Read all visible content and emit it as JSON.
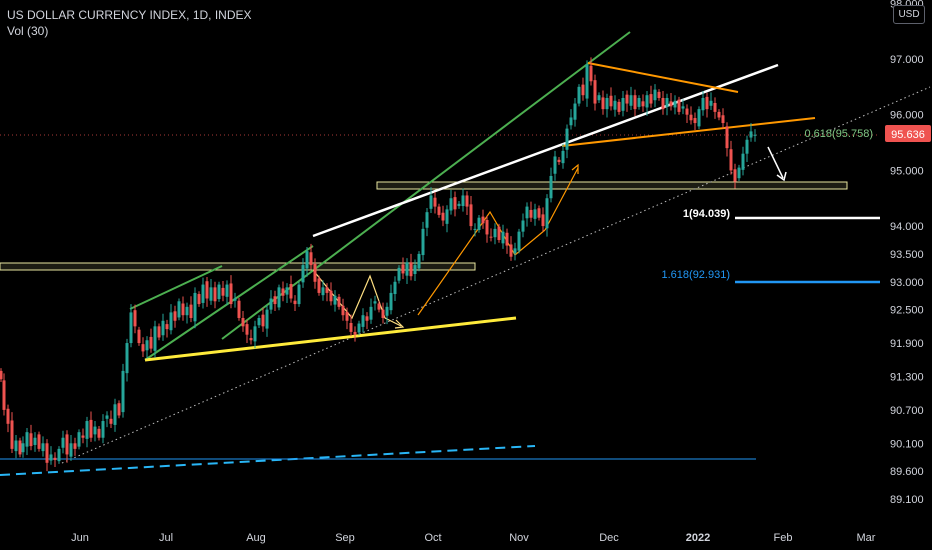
{
  "header": {
    "title": "US DOLLAR CURRENCY INDEX, 1D, INDEX",
    "indicator": "Vol (30)",
    "currency": "USD"
  },
  "colors": {
    "background": "#000000",
    "text": "#d1d4dc",
    "up": "#26a69a",
    "down": "#ef5350",
    "price_badge": "#ef5350",
    "green_line": "#4caf50",
    "white_line": "#ffffff",
    "orange_line": "#ff9800",
    "yellow_line": "#ffeb3b",
    "fib_green_text": "#81c784",
    "fib_blue": "#2196f3",
    "blue_dash": "#29b6f6",
    "zone_border": "#e8e6a0"
  },
  "chart_data": {
    "type": "candlestick",
    "symbol": "US DOLLAR CURRENCY INDEX",
    "timeframe": "1D",
    "y_tick_labels": [
      "98.000",
      "97.000",
      "96.000",
      "95.000",
      "94.000",
      "93.500",
      "93.000",
      "92.500",
      "91.900",
      "91.300",
      "90.700",
      "90.100",
      "89.600",
      "89.100"
    ],
    "x_tick_labels": [
      "Jun",
      "Jul",
      "Aug",
      "Sep",
      "Oct",
      "Nov",
      "Dec",
      "2022",
      "Feb",
      "Mar"
    ],
    "current_price": "95.636",
    "annotations": {
      "fib_0618": "0.618(95.758)",
      "fib_1": "1(94.039)",
      "fib_1618": "1.618(92.931)"
    },
    "ohlc_path": [
      [
        1,
        91.25
      ],
      [
        4,
        90.7
      ],
      [
        8,
        90.45
      ],
      [
        12,
        90.0
      ],
      [
        16,
        90.15
      ],
      [
        20,
        89.9
      ],
      [
        23,
        90.1
      ],
      [
        27,
        90.3
      ],
      [
        31,
        90.05
      ],
      [
        35,
        90.2
      ],
      [
        39,
        90.0
      ],
      [
        43,
        90.1
      ],
      [
        47,
        89.75
      ],
      [
        51,
        89.9
      ],
      [
        55,
        89.8
      ],
      [
        59,
        90.0
      ],
      [
        63,
        90.2
      ],
      [
        67,
        89.9
      ],
      [
        71,
        90.1
      ],
      [
        75,
        90.0
      ],
      [
        79,
        90.3
      ],
      [
        83,
        90.2
      ],
      [
        87,
        90.5
      ],
      [
        91,
        90.2
      ],
      [
        95,
        90.4
      ],
      [
        99,
        90.2
      ],
      [
        103,
        90.5
      ],
      [
        107,
        90.6
      ],
      [
        111,
        90.45
      ],
      [
        115,
        90.8
      ],
      [
        119,
        90.6
      ],
      [
        123,
        91.4
      ],
      [
        127,
        91.9
      ],
      [
        131,
        92.45
      ],
      [
        135,
        92.2
      ],
      [
        139,
        91.9
      ],
      [
        143,
        91.75
      ],
      [
        147,
        91.95
      ],
      [
        151,
        91.8
      ],
      [
        155,
        92.2
      ],
      [
        159,
        92.0
      ],
      [
        163,
        92.3
      ],
      [
        167,
        92.15
      ],
      [
        171,
        92.45
      ],
      [
        175,
        92.3
      ],
      [
        179,
        92.65
      ],
      [
        183,
        92.4
      ],
      [
        187,
        92.55
      ],
      [
        191,
        92.35
      ],
      [
        195,
        92.8
      ],
      [
        199,
        92.6
      ],
      [
        203,
        92.95
      ],
      [
        207,
        92.7
      ],
      [
        211,
        92.9
      ],
      [
        215,
        92.65
      ],
      [
        219,
        92.95
      ],
      [
        223,
        92.75
      ],
      [
        227,
        92.95
      ],
      [
        231,
        92.6
      ],
      [
        235,
        92.7
      ],
      [
        239,
        92.35
      ],
      [
        243,
        92.2
      ],
      [
        247,
        92.05
      ],
      [
        251,
        91.95
      ],
      [
        255,
        92.2
      ],
      [
        259,
        92.35
      ],
      [
        263,
        92.2
      ],
      [
        267,
        92.5
      ],
      [
        271,
        92.7
      ],
      [
        275,
        92.6
      ],
      [
        279,
        92.9
      ],
      [
        283,
        92.75
      ],
      [
        287,
        92.9
      ],
      [
        291,
        92.7
      ],
      [
        295,
        92.6
      ],
      [
        299,
        92.95
      ],
      [
        303,
        93.3
      ],
      [
        307,
        93.55
      ],
      [
        311,
        93.3
      ],
      [
        315,
        93.0
      ],
      [
        319,
        92.8
      ],
      [
        323,
        92.9
      ],
      [
        327,
        92.8
      ],
      [
        331,
        92.65
      ],
      [
        335,
        92.75
      ],
      [
        339,
        92.55
      ],
      [
        343,
        92.4
      ],
      [
        347,
        92.3
      ],
      [
        351,
        92.1
      ],
      [
        355,
        92.05
      ],
      [
        359,
        92.25
      ],
      [
        363,
        92.4
      ],
      [
        367,
        92.3
      ],
      [
        371,
        92.55
      ],
      [
        375,
        92.65
      ],
      [
        379,
        92.5
      ],
      [
        383,
        92.35
      ],
      [
        387,
        92.55
      ],
      [
        391,
        92.8
      ],
      [
        395,
        93.0
      ],
      [
        399,
        93.25
      ],
      [
        403,
        93.15
      ],
      [
        407,
        93.35
      ],
      [
        411,
        93.1
      ],
      [
        415,
        93.3
      ],
      [
        419,
        93.5
      ],
      [
        423,
        93.95
      ],
      [
        427,
        94.25
      ],
      [
        431,
        94.55
      ],
      [
        435,
        94.35
      ],
      [
        439,
        94.2
      ],
      [
        443,
        94.1
      ],
      [
        447,
        94.3
      ],
      [
        451,
        94.5
      ],
      [
        455,
        94.3
      ],
      [
        459,
        94.4
      ],
      [
        463,
        94.55
      ],
      [
        467,
        94.35
      ],
      [
        471,
        94.0
      ],
      [
        475,
        93.95
      ],
      [
        479,
        94.15
      ],
      [
        483,
        94.05
      ],
      [
        487,
        93.85
      ],
      [
        491,
        93.8
      ],
      [
        495,
        93.95
      ],
      [
        499,
        93.75
      ],
      [
        503,
        93.9
      ],
      [
        507,
        93.65
      ],
      [
        511,
        93.45
      ],
      [
        515,
        93.6
      ],
      [
        519,
        93.9
      ],
      [
        523,
        94.1
      ],
      [
        527,
        94.35
      ],
      [
        531,
        94.15
      ],
      [
        535,
        94.3
      ],
      [
        539,
        94.15
      ],
      [
        543,
        94.0
      ],
      [
        547,
        94.5
      ],
      [
        551,
        94.9
      ],
      [
        555,
        95.25
      ],
      [
        559,
        95.15
      ],
      [
        563,
        95.35
      ],
      [
        567,
        95.75
      ],
      [
        571,
        95.95
      ],
      [
        575,
        96.2
      ],
      [
        579,
        96.5
      ],
      [
        583,
        96.35
      ],
      [
        587,
        96.9
      ],
      [
        591,
        96.6
      ],
      [
        595,
        96.2
      ],
      [
        599,
        96.35
      ],
      [
        603,
        96.1
      ],
      [
        607,
        96.3
      ],
      [
        611,
        96.15
      ],
      [
        615,
        96.25
      ],
      [
        619,
        96.05
      ],
      [
        623,
        96.3
      ],
      [
        627,
        96.2
      ],
      [
        631,
        96.35
      ],
      [
        635,
        96.1
      ],
      [
        639,
        96.3
      ],
      [
        643,
        96.15
      ],
      [
        647,
        96.35
      ],
      [
        651,
        96.2
      ],
      [
        655,
        96.45
      ],
      [
        659,
        96.3
      ],
      [
        663,
        96.1
      ],
      [
        667,
        96.3
      ],
      [
        671,
        96.15
      ],
      [
        675,
        96.25
      ],
      [
        679,
        96.05
      ],
      [
        683,
        96.15
      ],
      [
        687,
        96.0
      ],
      [
        691,
        95.9
      ],
      [
        695,
        95.85
      ],
      [
        699,
        96.1
      ],
      [
        703,
        96.3
      ],
      [
        707,
        96.1
      ],
      [
        711,
        96.25
      ],
      [
        715,
        96.05
      ],
      [
        719,
        95.95
      ],
      [
        723,
        95.85
      ],
      [
        727,
        95.4
      ],
      [
        731,
        95.0
      ],
      [
        735,
        94.8
      ],
      [
        739,
        95.05
      ],
      [
        743,
        95.3
      ],
      [
        747,
        95.55
      ],
      [
        751,
        95.7
      ],
      [
        755,
        95.64
      ]
    ]
  }
}
